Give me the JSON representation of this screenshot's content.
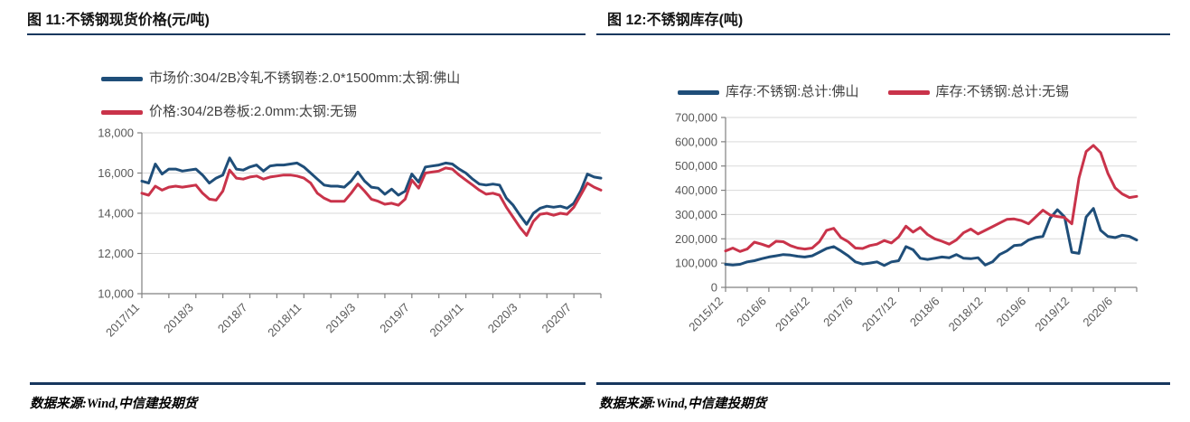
{
  "figures": [
    {
      "title": "图 11:不锈钢现货价格(元/吨)",
      "source": "数据来源:Wind,中信建投期货"
    },
    {
      "title": "图 12:不锈钢库存(吨)",
      "source": "数据来源:Wind,中信建投期货"
    }
  ],
  "colors": {
    "series_blue": "#1f4e79",
    "series_red": "#c9334a",
    "rule_navy": "#17375e",
    "axis": "#808080",
    "grid": "#d9d9d9",
    "tick_text": "#595959",
    "legend_text": "#404040"
  },
  "chart_data": [
    {
      "type": "line",
      "title": "图 11:不锈钢现货价格(元/吨)",
      "xlabel": "",
      "ylabel": "",
      "ylim": [
        10000,
        18000
      ],
      "ytick_step": 2000,
      "grid": true,
      "legend_position": "top-left",
      "x_tick_labels": [
        "2017/11",
        "2018/3",
        "2018/7",
        "2018/11",
        "2019/3",
        "2019/7",
        "2019/11",
        "2020/3",
        "2020/7"
      ],
      "x_label_every": 8,
      "x_tick_every": 4,
      "series": [
        {
          "name": "市场价:304/2B冷轧不锈钢卷:2.0*1500mm:太钢:佛山",
          "color": "#1f4e79",
          "values": [
            15600,
            15500,
            16450,
            15950,
            16200,
            16200,
            16100,
            16150,
            16200,
            15900,
            15500,
            15750,
            15900,
            16750,
            16200,
            16150,
            16300,
            16400,
            16100,
            16350,
            16400,
            16400,
            16450,
            16500,
            16300,
            16000,
            15700,
            15400,
            15350,
            15350,
            15300,
            15600,
            16050,
            15600,
            15300,
            15250,
            14950,
            15200,
            14900,
            15100,
            15950,
            15550,
            16300,
            16350,
            16400,
            16500,
            16450,
            16200,
            16000,
            15700,
            15450,
            15400,
            15450,
            15400,
            14750,
            14400,
            13900,
            13450,
            14000,
            14250,
            14350,
            14300,
            14350,
            14250,
            14500,
            15100,
            15950,
            15800,
            15750
          ]
        },
        {
          "name": "价格:304/2B卷板:2.0mm:太钢:无锡",
          "color": "#c9334a",
          "values": [
            15000,
            14900,
            15350,
            15150,
            15300,
            15350,
            15300,
            15350,
            15400,
            15000,
            14700,
            14650,
            15100,
            16150,
            15750,
            15700,
            15800,
            15850,
            15700,
            15800,
            15850,
            15900,
            15900,
            15850,
            15750,
            15500,
            15000,
            14750,
            14600,
            14600,
            14600,
            15000,
            15450,
            15100,
            14700,
            14600,
            14450,
            14500,
            14400,
            14700,
            15650,
            15250,
            16000,
            16050,
            16100,
            16250,
            16200,
            15900,
            15650,
            15400,
            15150,
            14950,
            15000,
            14900,
            14300,
            13800,
            13300,
            12900,
            13600,
            13950,
            14000,
            13900,
            14000,
            13950,
            14300,
            14900,
            15500,
            15300,
            15150
          ]
        }
      ]
    },
    {
      "type": "line",
      "title": "图 12:不锈钢库存(吨)",
      "xlabel": "",
      "ylabel": "",
      "ylim": [
        0,
        700000
      ],
      "ytick_step": 100000,
      "grid": true,
      "legend_position": "top",
      "x_tick_labels": [
        "2015/12",
        "2016/6",
        "2016/12",
        "2017/6",
        "2017/12",
        "2018/6",
        "2018/12",
        "2019/6",
        "2019/12",
        "2020/6"
      ],
      "x_label_every": 6,
      "x_tick_every": 3,
      "series": [
        {
          "name": "库存:不锈钢:总计:佛山",
          "color": "#1f4e79",
          "values": [
            95000,
            92000,
            95000,
            105000,
            110000,
            118000,
            125000,
            130000,
            135000,
            133000,
            128000,
            125000,
            130000,
            145000,
            160000,
            168000,
            150000,
            130000,
            105000,
            96000,
            100000,
            105000,
            90000,
            105000,
            110000,
            168000,
            155000,
            120000,
            115000,
            120000,
            125000,
            122000,
            135000,
            120000,
            118000,
            122000,
            92000,
            105000,
            135000,
            150000,
            172000,
            175000,
            195000,
            205000,
            210000,
            285000,
            320000,
            290000,
            145000,
            140000,
            290000,
            325000,
            235000,
            210000,
            205000,
            215000,
            210000,
            195000
          ]
        },
        {
          "name": "库存:不锈钢:总计:无锡",
          "color": "#c9334a",
          "values": [
            150000,
            162000,
            148000,
            158000,
            186000,
            178000,
            168000,
            190000,
            188000,
            172000,
            162000,
            158000,
            162000,
            188000,
            235000,
            243000,
            205000,
            188000,
            162000,
            160000,
            172000,
            178000,
            193000,
            183000,
            208000,
            252000,
            228000,
            247000,
            218000,
            200000,
            190000,
            178000,
            195000,
            225000,
            240000,
            220000,
            235000,
            250000,
            265000,
            280000,
            282000,
            275000,
            262000,
            290000,
            318000,
            298000,
            292000,
            288000,
            262000,
            450000,
            560000,
            585000,
            555000,
            470000,
            410000,
            385000,
            370000,
            375000
          ]
        }
      ]
    }
  ]
}
